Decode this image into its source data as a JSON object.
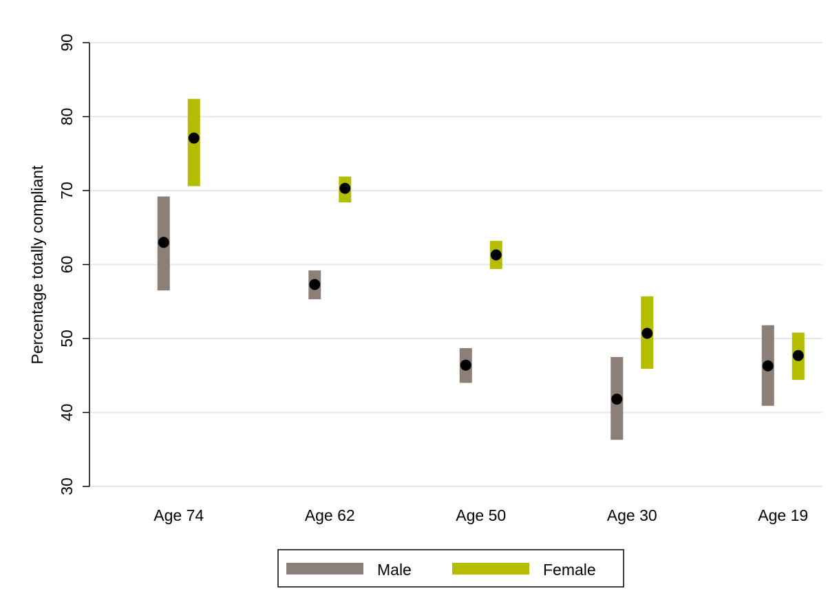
{
  "chart_data": {
    "type": "range-point",
    "y_label": "Percentage totally compliant",
    "categories": [
      "Age 74",
      "Age 62",
      "Age 50",
      "Age 30",
      "Age 19"
    ],
    "series": [
      {
        "name": "Male",
        "color": "#8b7f78",
        "values": [
          63.0,
          57.3,
          46.4,
          41.8,
          46.3
        ],
        "low": [
          56.5,
          55.3,
          44.0,
          36.3,
          40.9
        ],
        "high": [
          69.2,
          59.2,
          48.7,
          47.5,
          51.8
        ]
      },
      {
        "name": "Female",
        "color": "#b5bd00",
        "values": [
          77.1,
          70.3,
          61.3,
          50.7,
          47.7
        ],
        "low": [
          70.6,
          68.4,
          59.4,
          45.9,
          44.4
        ],
        "high": [
          82.4,
          71.9,
          63.2,
          55.7,
          50.8
        ]
      }
    ],
    "ylim": [
      30,
      90
    ],
    "yticks": [
      30,
      40,
      50,
      60,
      70,
      80,
      90
    ],
    "grid": true
  }
}
